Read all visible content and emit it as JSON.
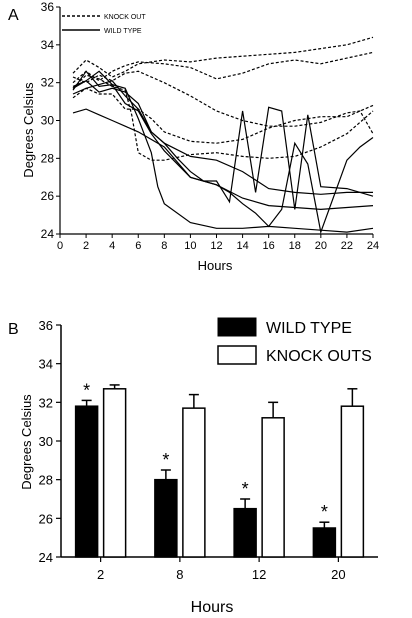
{
  "chart_data": [
    {
      "panel": "A",
      "type": "line",
      "xlabel": "Hours",
      "ylabel": "Degrees Celsius",
      "xlim": [
        0,
        24
      ],
      "ylim": [
        24,
        36
      ],
      "xticks": [
        0,
        2,
        4,
        6,
        8,
        10,
        12,
        14,
        16,
        18,
        20,
        22,
        24
      ],
      "yticks": [
        24,
        26,
        28,
        30,
        32,
        34,
        36
      ],
      "grid": false,
      "legend_position": "top-left",
      "legend": [
        {
          "label": "KNOCK OUT",
          "style": "dashed"
        },
        {
          "label": "WILD TYPE",
          "style": "solid"
        }
      ],
      "series": [
        {
          "group": "KNOCK OUT",
          "x": [
            1,
            2,
            3,
            4,
            5,
            6,
            8,
            10,
            12,
            14,
            16,
            18,
            20,
            22,
            24
          ],
          "y": [
            32.5,
            33.2,
            32.8,
            32.3,
            32.6,
            33.0,
            33.2,
            33.1,
            33.3,
            33.4,
            33.5,
            33.6,
            33.8,
            34.0,
            34.4
          ]
        },
        {
          "group": "KNOCK OUT",
          "x": [
            1,
            2,
            3,
            4,
            5,
            6,
            8,
            10,
            12,
            14,
            16,
            18,
            20,
            22,
            24
          ],
          "y": [
            32.0,
            32.6,
            32.1,
            32.6,
            32.9,
            33.1,
            33.0,
            32.8,
            32.2,
            32.5,
            33.0,
            33.2,
            33.0,
            33.3,
            33.6
          ]
        },
        {
          "group": "KNOCK OUT",
          "x": [
            1,
            2,
            3,
            4,
            5,
            6,
            8,
            10,
            12,
            14,
            16,
            18,
            20,
            22,
            23,
            24
          ],
          "y": [
            32.3,
            32.0,
            32.4,
            32.1,
            32.5,
            32.6,
            32.0,
            31.3,
            30.5,
            30.0,
            29.7,
            29.7,
            29.9,
            30.4,
            30.5,
            29.3
          ]
        },
        {
          "group": "KNOCK OUT",
          "x": [
            1,
            2,
            3,
            4,
            5,
            5.5,
            6,
            7,
            8,
            10,
            12,
            14,
            16,
            18,
            20,
            22,
            24
          ],
          "y": [
            31.7,
            32.4,
            32.2,
            31.8,
            31.6,
            30.3,
            28.3,
            27.9,
            27.9,
            28.2,
            28.3,
            28.1,
            28.0,
            28.1,
            28.6,
            29.3,
            30.5
          ]
        },
        {
          "group": "KNOCK OUT",
          "x": [
            1,
            2,
            3,
            4,
            5,
            6,
            7,
            8,
            10,
            12,
            14,
            16,
            18,
            20,
            22,
            24
          ],
          "y": [
            31.2,
            31.7,
            31.4,
            31.4,
            30.6,
            30.6,
            30.1,
            29.4,
            28.9,
            28.8,
            29.0,
            29.6,
            30.0,
            30.2,
            30.2,
            30.8
          ]
        },
        {
          "group": "WILD TYPE",
          "x": [
            1,
            2,
            3,
            4,
            5,
            6,
            7,
            8,
            10,
            12,
            14,
            16,
            18,
            20,
            22,
            24
          ],
          "y": [
            31.8,
            32.1,
            31.5,
            31.7,
            31.5,
            30.9,
            29.4,
            28.8,
            28.1,
            27.9,
            27.3,
            26.4,
            26.2,
            26.1,
            26.2,
            26.2
          ]
        },
        {
          "group": "WILD TYPE",
          "x": [
            1,
            2,
            3,
            4,
            5,
            6,
            7,
            8,
            10,
            12,
            14,
            16,
            18,
            20,
            22,
            24
          ],
          "y": [
            31.6,
            32.6,
            31.8,
            31.9,
            30.9,
            30.5,
            29.3,
            28.4,
            27.0,
            26.6,
            25.9,
            25.5,
            25.4,
            25.3,
            25.4,
            25.5
          ]
        },
        {
          "group": "WILD TYPE",
          "x": [
            1,
            2,
            3,
            4,
            5,
            6,
            7,
            7.5,
            8,
            10,
            12,
            14,
            16,
            18,
            20,
            22,
            24
          ],
          "y": [
            31.7,
            32.1,
            32.6,
            31.9,
            31.7,
            30.1,
            28.3,
            26.5,
            25.6,
            24.6,
            24.3,
            24.3,
            24.4,
            24.3,
            24.2,
            24.1,
            24.3
          ]
        },
        {
          "group": "WILD TYPE",
          "x": [
            1,
            2,
            3,
            4,
            5,
            6,
            7,
            8,
            9,
            10,
            11,
            12,
            13,
            14,
            15,
            16,
            17,
            18,
            19,
            20,
            22,
            24
          ],
          "y": [
            31.4,
            31.7,
            31.9,
            32.1,
            31.3,
            30.6,
            29.4,
            28.8,
            28.0,
            27.3,
            26.8,
            26.8,
            25.7,
            30.5,
            26.2,
            30.7,
            30.5,
            25.3,
            30.3,
            26.5,
            26.4,
            26.0
          ]
        },
        {
          "group": "WILD TYPE",
          "x": [
            1,
            2,
            3,
            4,
            5,
            6,
            8,
            10,
            12,
            13,
            14,
            15,
            16,
            17,
            18,
            19,
            20,
            22,
            23,
            24
          ],
          "y": [
            30.4,
            30.6,
            30.3,
            30.0,
            29.7,
            29.4,
            28.6,
            27.0,
            26.6,
            26.2,
            25.6,
            25.1,
            24.4,
            25.3,
            28.8,
            27.7,
            24.1,
            27.9,
            28.6,
            29.1
          ]
        }
      ]
    },
    {
      "panel": "B",
      "type": "bar",
      "xlabel": "Hours",
      "ylabel": "Degrees Celsius",
      "categories": [
        "2",
        "8",
        "12",
        "20"
      ],
      "ylim": [
        24,
        36
      ],
      "yticks": [
        24,
        26,
        28,
        30,
        32,
        34,
        36
      ],
      "grid": false,
      "legend_position": "top-right",
      "series": [
        {
          "name": "WILD TYPE",
          "fill": "#000000",
          "values": [
            31.8,
            28.0,
            26.5,
            25.5
          ],
          "errors": [
            0.3,
            0.5,
            0.5,
            0.3
          ],
          "significance": [
            "*",
            "*",
            "*",
            "*"
          ]
        },
        {
          "name": "KNOCK OUTS",
          "fill": "#ffffff",
          "values": [
            32.7,
            31.7,
            31.2,
            31.8
          ],
          "errors": [
            0.2,
            0.7,
            0.8,
            0.9
          ]
        }
      ]
    }
  ]
}
